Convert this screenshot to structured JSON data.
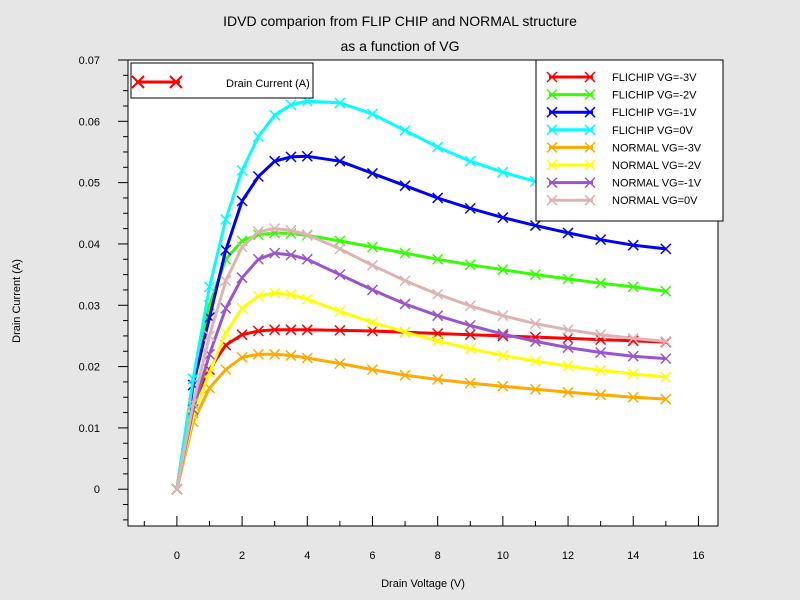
{
  "chart_data": {
    "type": "line",
    "title": "IDVD comparion from FLIP CHIP and NORMAL structure",
    "subtitle": "as a function of VG",
    "xlabel": "Drain Voltage (V)",
    "ylabel": "Drain Current (A)",
    "xlim": [
      -1.5,
      16.6
    ],
    "ylim": [
      -0.006,
      0.07
    ],
    "x_ticks": [
      0,
      2,
      4,
      6,
      8,
      10,
      12,
      14,
      16
    ],
    "x_tick_labels": [
      "0",
      "2",
      "4",
      "6",
      "8",
      "10",
      "12",
      "14",
      "16"
    ],
    "y_ticks": [
      0,
      0.01,
      0.02,
      0.03,
      0.04,
      0.05,
      0.06,
      0.07
    ],
    "y_tick_labels": [
      "0",
      "0.01",
      "0.02",
      "0.03",
      "0.04",
      "0.05",
      "0.06",
      "0.07"
    ],
    "grid": false,
    "legend_left": {
      "label": "Drain Current (A)",
      "color": "#ff0000",
      "position": "top-left"
    },
    "legend_position": "top-right",
    "x": [
      0,
      0.5,
      1,
      1.5,
      2,
      2.5,
      3,
      3.5,
      4,
      5,
      6,
      7,
      8,
      9,
      10,
      11,
      12,
      13,
      14,
      15
    ],
    "series": [
      {
        "name": "FLICHIP VG=-3V",
        "color": "#ff0000",
        "values": [
          0,
          0.014,
          0.0195,
          0.0235,
          0.0252,
          0.0258,
          0.026,
          0.026,
          0.026,
          0.0259,
          0.0258,
          0.0256,
          0.0254,
          0.0252,
          0.025,
          0.0248,
          0.0246,
          0.0244,
          0.0242,
          0.024
        ]
      },
      {
        "name": "FLICHIP VG=-2V",
        "color": "#33ff00",
        "values": [
          0,
          0.018,
          0.03,
          0.0375,
          0.0405,
          0.0415,
          0.0418,
          0.0417,
          0.0414,
          0.0405,
          0.0395,
          0.0385,
          0.0375,
          0.0366,
          0.0358,
          0.035,
          0.0343,
          0.0336,
          0.033,
          0.0323
        ]
      },
      {
        "name": "FLICHIP VG=-1V",
        "color": "#0000ff",
        "values": [
          0,
          0.017,
          0.028,
          0.039,
          0.047,
          0.051,
          0.0535,
          0.0542,
          0.0543,
          0.0535,
          0.0515,
          0.0495,
          0.0475,
          0.0458,
          0.0443,
          0.043,
          0.0418,
          0.0407,
          0.0398,
          0.0392
        ]
      },
      {
        "name": "FLICHIP VG=0V",
        "color": "#00ffff",
        "values": [
          0,
          0.018,
          0.033,
          0.044,
          0.052,
          0.0575,
          0.061,
          0.0627,
          0.0633,
          0.063,
          0.0612,
          0.0585,
          0.0558,
          0.0535,
          0.0517,
          0.0502,
          0.049,
          0.048,
          0.0472,
          0.0465
        ]
      }
    ],
    "series_normal": [
      {
        "name": "NORMAL VG=-3V",
        "color": "#ffaa00",
        "values": [
          0,
          0.011,
          0.0165,
          0.0195,
          0.0215,
          0.022,
          0.022,
          0.0218,
          0.0214,
          0.0205,
          0.0195,
          0.0186,
          0.0179,
          0.0173,
          0.0168,
          0.0163,
          0.0158,
          0.0154,
          0.015,
          0.0147
        ]
      },
      {
        "name": "NORMAL VG=-2V",
        "color": "#ffff00",
        "values": [
          0,
          0.012,
          0.019,
          0.0255,
          0.0295,
          0.0315,
          0.032,
          0.0317,
          0.031,
          0.029,
          0.0272,
          0.0256,
          0.0242,
          0.0229,
          0.0218,
          0.0209,
          0.0201,
          0.0194,
          0.0188,
          0.0183
        ]
      },
      {
        "name": "NORMAL VG=-1V",
        "color": "#9955cc",
        "values": [
          0,
          0.013,
          0.022,
          0.0295,
          0.0345,
          0.0375,
          0.0385,
          0.0382,
          0.0375,
          0.035,
          0.0325,
          0.0302,
          0.0283,
          0.0267,
          0.0253,
          0.0241,
          0.0231,
          0.0223,
          0.0217,
          0.0213
        ]
      },
      {
        "name": "NORMAL VG=0V",
        "color": "#ddb3b3",
        "values": [
          0,
          0.014,
          0.025,
          0.034,
          0.0395,
          0.042,
          0.0425,
          0.0422,
          0.0415,
          0.0392,
          0.0365,
          0.034,
          0.0318,
          0.0299,
          0.0283,
          0.027,
          0.026,
          0.0252,
          0.0246,
          0.0241
        ]
      }
    ]
  }
}
